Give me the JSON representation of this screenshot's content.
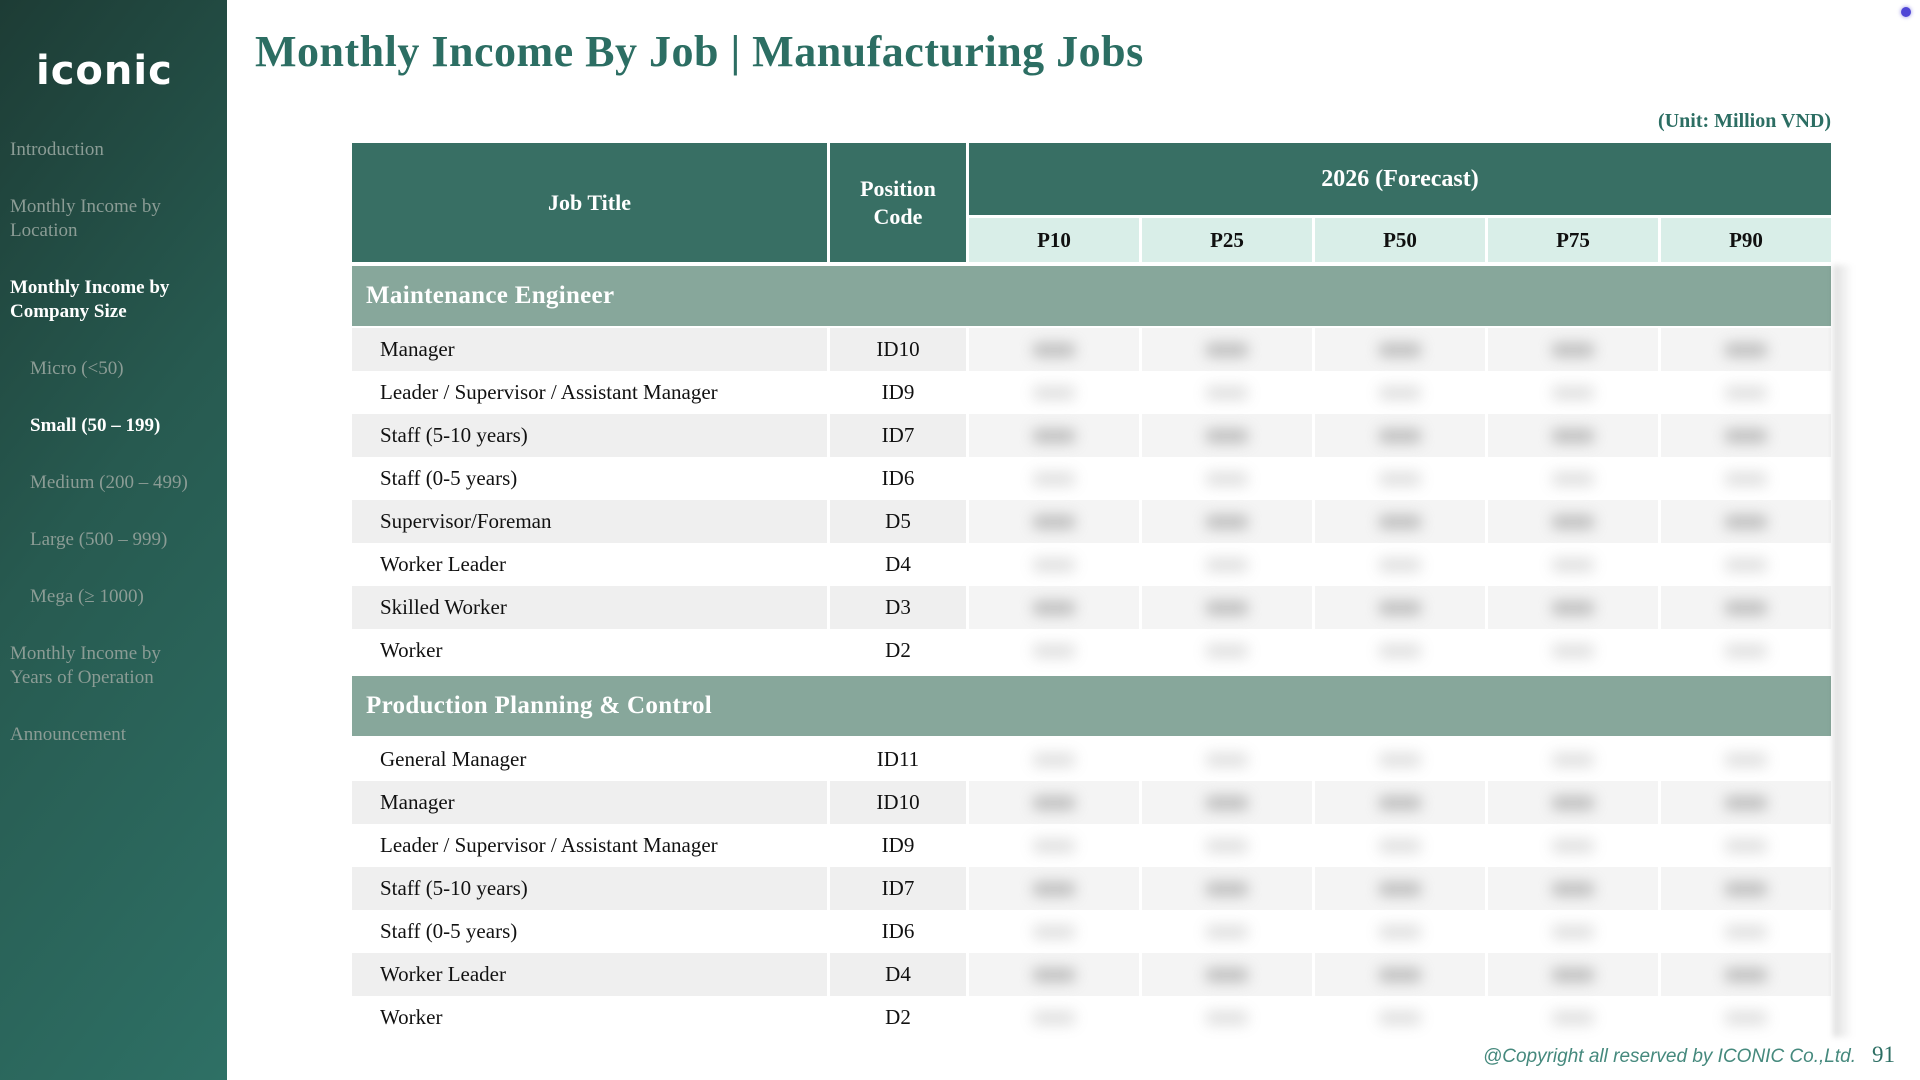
{
  "colors": {
    "header_teal": "#386f64",
    "mint": "#d9eee8",
    "band_sage": "#87a79b",
    "row_stripe": "#efefef",
    "accent_teal": "#2c6e63",
    "sidebar_dark": "#1d3c35",
    "sidebar_light": "#2e7065",
    "nav_inactive": "#8b9c95",
    "footer_teal": "#45897d",
    "dot_violet": "#4f46d6"
  },
  "sidebar": {
    "logo": "iconic",
    "items": [
      {
        "label": "Introduction",
        "level": 0,
        "active": false
      },
      {
        "label": "Monthly Income by Location",
        "level": 0,
        "active": false
      },
      {
        "label": "Monthly Income by Company Size",
        "level": 0,
        "active": true
      },
      {
        "label": "Micro (<50)",
        "level": 1,
        "active": false
      },
      {
        "label": "Small (50 – 199)",
        "level": 1,
        "active": true
      },
      {
        "label": "Medium (200 – 499)",
        "level": 1,
        "active": false
      },
      {
        "label": "Large (500 – 999)",
        "level": 1,
        "active": false
      },
      {
        "label": "Mega (≥ 1000)",
        "level": 1,
        "active": false
      },
      {
        "label": "Monthly Income by Years of Operation",
        "level": 0,
        "active": false
      },
      {
        "label": "Announcement",
        "level": 0,
        "active": false
      }
    ]
  },
  "header": {
    "title": "Monthly Income By Job | Manufacturing Jobs",
    "unit_label": "(Unit: Million VND)"
  },
  "table": {
    "columns": {
      "job_title": "Job Title",
      "position_code": "Position Code",
      "group": "2026 (Forecast)",
      "percentiles": [
        "P10",
        "P25",
        "P50",
        "P75",
        "P90"
      ]
    },
    "values_redacted": true,
    "sections": [
      {
        "name": "Maintenance Engineer",
        "first_row_shaded": true,
        "rows": [
          {
            "job_title": "Manager",
            "code": "ID10"
          },
          {
            "job_title": "Leader / Supervisor / Assistant Manager",
            "code": "ID9"
          },
          {
            "job_title": "Staff (5-10 years)",
            "code": "ID7"
          },
          {
            "job_title": "Staff (0-5 years)",
            "code": "ID6"
          },
          {
            "job_title": "Supervisor/Foreman",
            "code": "D5"
          },
          {
            "job_title": "Worker Leader",
            "code": "D4"
          },
          {
            "job_title": "Skilled Worker",
            "code": "D3"
          },
          {
            "job_title": "Worker",
            "code": "D2"
          }
        ]
      },
      {
        "name": "Production Planning & Control",
        "first_row_shaded": false,
        "rows": [
          {
            "job_title": "General Manager",
            "code": "ID11"
          },
          {
            "job_title": "Manager",
            "code": "ID10"
          },
          {
            "job_title": "Leader / Supervisor / Assistant Manager",
            "code": "ID9"
          },
          {
            "job_title": "Staff (5-10 years)",
            "code": "ID7"
          },
          {
            "job_title": "Staff (0-5 years)",
            "code": "ID6"
          },
          {
            "job_title": "Worker Leader",
            "code": "D4"
          },
          {
            "job_title": "Worker",
            "code": "D2"
          }
        ]
      }
    ]
  },
  "footer": {
    "copyright": "@Copyright all reserved by ICONIC Co.,Ltd.",
    "page_number": "91"
  }
}
